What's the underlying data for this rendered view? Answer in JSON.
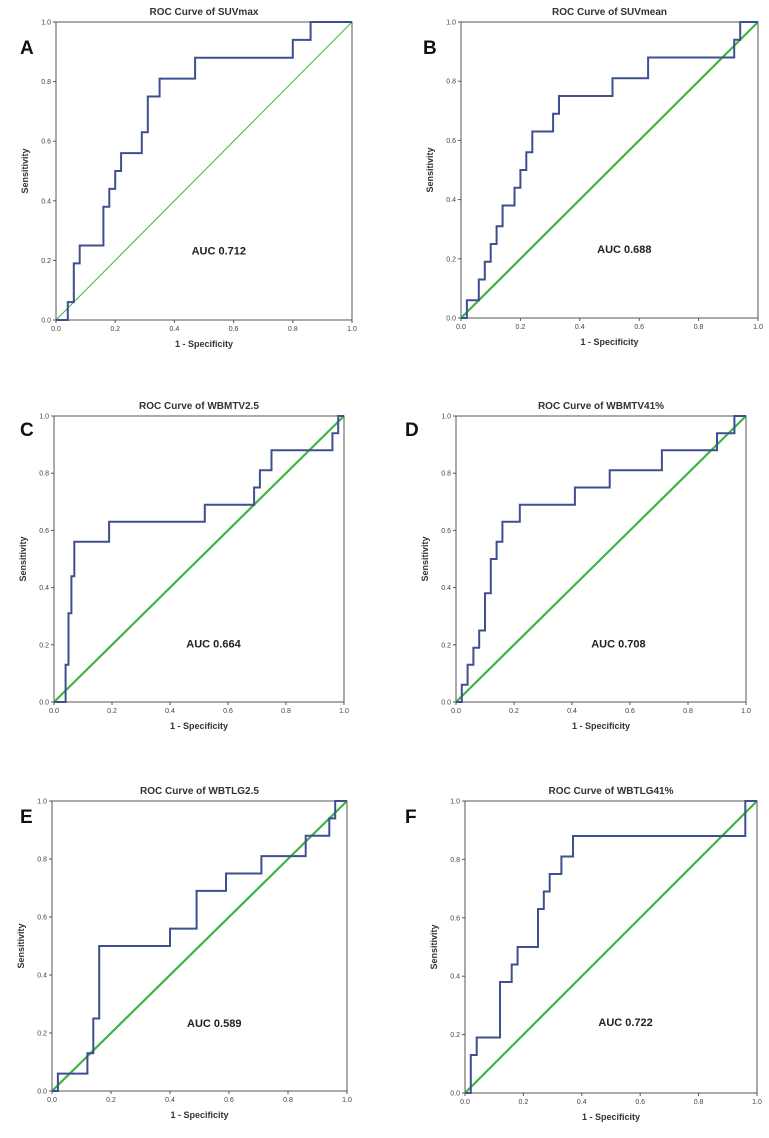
{
  "chart_data": [
    {
      "type": "line",
      "panel": "A",
      "title": "ROC Curve of SUVmax",
      "xlabel": "1 - Specificity",
      "ylabel": "Sensitivity",
      "xlim": [
        0,
        1
      ],
      "ylim": [
        0,
        1
      ],
      "ticks": [
        "0.0",
        "0.2",
        "0.4",
        "0.6",
        "0.8",
        "1.0"
      ],
      "annotation": "AUC 0.712",
      "series": [
        {
          "name": "ROC",
          "color": "#3f4f8f",
          "x": [
            0,
            0.04,
            0.04,
            0.06,
            0.06,
            0.08,
            0.08,
            0.16,
            0.16,
            0.18,
            0.18,
            0.2,
            0.2,
            0.22,
            0.22,
            0.29,
            0.29,
            0.31,
            0.31,
            0.35,
            0.35,
            0.37,
            0.37,
            0.47,
            0.47,
            0.8,
            0.8,
            0.86,
            0.86,
            1
          ],
          "y": [
            0,
            0,
            0.06,
            0.06,
            0.19,
            0.19,
            0.25,
            0.25,
            0.38,
            0.38,
            0.44,
            0.44,
            0.5,
            0.5,
            0.56,
            0.56,
            0.63,
            0.63,
            0.75,
            0.75,
            0.81,
            0.81,
            0.81,
            0.81,
            0.88,
            0.88,
            0.94,
            0.94,
            1,
            1
          ]
        },
        {
          "name": "Reference Line",
          "color": "#3db53d",
          "x": [
            0,
            1
          ],
          "y": [
            0,
            1
          ]
        }
      ]
    },
    {
      "type": "line",
      "panel": "B",
      "title": "ROC Curve of SUVmean",
      "xlabel": "1 - Specificity",
      "ylabel": "Sensitivity",
      "xlim": [
        0,
        1
      ],
      "ylim": [
        0,
        1
      ],
      "ticks": [
        "0.0",
        "0.2",
        "0.4",
        "0.6",
        "0.8",
        "1.0"
      ],
      "annotation": "AUC 0.688",
      "series": [
        {
          "name": "ROC",
          "color": "#3f4f8f",
          "x": [
            0,
            0.02,
            0.02,
            0.04,
            0.04,
            0.06,
            0.06,
            0.08,
            0.08,
            0.1,
            0.1,
            0.12,
            0.12,
            0.14,
            0.14,
            0.18,
            0.18,
            0.2,
            0.2,
            0.22,
            0.22,
            0.24,
            0.24,
            0.31,
            0.31,
            0.33,
            0.33,
            0.51,
            0.51,
            0.63,
            0.63,
            0.92,
            0.92,
            0.94,
            0.94,
            0.96,
            0.96,
            1
          ],
          "y": [
            0,
            0,
            0.06,
            0.06,
            0.06,
            0.06,
            0.13,
            0.13,
            0.19,
            0.19,
            0.25,
            0.25,
            0.31,
            0.31,
            0.38,
            0.38,
            0.44,
            0.44,
            0.5,
            0.5,
            0.56,
            0.56,
            0.63,
            0.63,
            0.69,
            0.69,
            0.75,
            0.75,
            0.81,
            0.81,
            0.88,
            0.88,
            0.94,
            0.94,
            1,
            1,
            1,
            1
          ]
        },
        {
          "name": "Reference Line",
          "color": "#3db53d",
          "x": [
            0,
            1
          ],
          "y": [
            0,
            1
          ]
        }
      ]
    },
    {
      "type": "line",
      "panel": "C",
      "title": "ROC Curve of WBMTV2.5",
      "xlabel": "1 - Specificity",
      "ylabel": "Sensitivity",
      "xlim": [
        0,
        1
      ],
      "ylim": [
        0,
        1
      ],
      "ticks": [
        "0.0",
        "0.2",
        "0.4",
        "0.6",
        "0.8",
        "1.0"
      ],
      "annotation": "AUC 0.664",
      "series": [
        {
          "name": "ROC",
          "color": "#3f4f8f",
          "x": [
            0,
            0.04,
            0.04,
            0.05,
            0.05,
            0.06,
            0.06,
            0.07,
            0.07,
            0.19,
            0.19,
            0.52,
            0.52,
            0.69,
            0.69,
            0.71,
            0.71,
            0.75,
            0.75,
            0.96,
            0.96,
            0.98,
            0.98,
            1
          ],
          "y": [
            0,
            0,
            0.13,
            0.13,
            0.31,
            0.31,
            0.44,
            0.44,
            0.56,
            0.56,
            0.63,
            0.63,
            0.69,
            0.69,
            0.75,
            0.75,
            0.81,
            0.81,
            0.88,
            0.88,
            0.94,
            0.94,
            1,
            1
          ]
        },
        {
          "name": "Reference Line",
          "color": "#3db53d",
          "x": [
            0,
            1
          ],
          "y": [
            0,
            1
          ]
        }
      ]
    },
    {
      "type": "line",
      "panel": "D",
      "title": "ROC Curve of WBMTV41%",
      "xlabel": "1 - Specificity",
      "ylabel": "Sensitivity",
      "xlim": [
        0,
        1
      ],
      "ylim": [
        0,
        1
      ],
      "ticks": [
        "0.0",
        "0.2",
        "0.4",
        "0.6",
        "0.8",
        "1.0"
      ],
      "annotation": "AUC 0.708",
      "series": [
        {
          "name": "ROC",
          "color": "#3f4f8f",
          "x": [
            0,
            0.02,
            0.02,
            0.04,
            0.04,
            0.06,
            0.06,
            0.08,
            0.08,
            0.1,
            0.1,
            0.12,
            0.12,
            0.14,
            0.14,
            0.16,
            0.16,
            0.22,
            0.22,
            0.41,
            0.41,
            0.53,
            0.53,
            0.71,
            0.71,
            0.9,
            0.9,
            0.96,
            0.96,
            1
          ],
          "y": [
            0,
            0,
            0.06,
            0.06,
            0.13,
            0.13,
            0.19,
            0.19,
            0.25,
            0.25,
            0.38,
            0.38,
            0.5,
            0.5,
            0.56,
            0.56,
            0.63,
            0.63,
            0.69,
            0.69,
            0.75,
            0.75,
            0.81,
            0.81,
            0.88,
            0.88,
            0.94,
            0.94,
            1,
            1
          ]
        },
        {
          "name": "Reference Line",
          "color": "#3db53d",
          "x": [
            0,
            1
          ],
          "y": [
            0,
            1
          ]
        }
      ]
    },
    {
      "type": "line",
      "panel": "E",
      "title": "ROC Curve of WBTLG2.5",
      "xlabel": "1 - Specificity",
      "ylabel": "Sensitivity",
      "xlim": [
        0,
        1
      ],
      "ylim": [
        0,
        1
      ],
      "ticks": [
        "0.0",
        "0.2",
        "0.4",
        "0.6",
        "0.8",
        "1.0"
      ],
      "annotation": "AUC 0.589",
      "series": [
        {
          "name": "ROC",
          "color": "#3f4f8f",
          "x": [
            0,
            0.02,
            0.02,
            0.12,
            0.12,
            0.14,
            0.14,
            0.16,
            0.16,
            0.4,
            0.4,
            0.49,
            0.49,
            0.59,
            0.59,
            0.71,
            0.71,
            0.86,
            0.86,
            0.94,
            0.94,
            0.96,
            0.96,
            1
          ],
          "y": [
            0,
            0,
            0.06,
            0.06,
            0.13,
            0.13,
            0.25,
            0.25,
            0.5,
            0.5,
            0.56,
            0.56,
            0.69,
            0.69,
            0.75,
            0.75,
            0.81,
            0.81,
            0.88,
            0.88,
            0.94,
            0.94,
            1,
            1
          ]
        },
        {
          "name": "Reference Line",
          "color": "#3db53d",
          "x": [
            0,
            1
          ],
          "y": [
            0,
            1
          ]
        }
      ]
    },
    {
      "type": "line",
      "panel": "F",
      "title": "ROC Curve of WBTLG41%",
      "xlabel": "1 - Specificity",
      "ylabel": "Sensitivity",
      "xlim": [
        0,
        1
      ],
      "ylim": [
        0,
        1
      ],
      "ticks": [
        "0.0",
        "0.2",
        "0.4",
        "0.6",
        "0.8",
        "1.0"
      ],
      "annotation": "AUC 0.722",
      "series": [
        {
          "name": "ROC",
          "color": "#3f4f8f",
          "x": [
            0,
            0.02,
            0.02,
            0.04,
            0.04,
            0.12,
            0.12,
            0.16,
            0.16,
            0.18,
            0.18,
            0.25,
            0.25,
            0.27,
            0.27,
            0.29,
            0.29,
            0.33,
            0.33,
            0.37,
            0.37,
            0.96,
            0.96,
            1
          ],
          "y": [
            0,
            0,
            0.13,
            0.13,
            0.19,
            0.19,
            0.38,
            0.38,
            0.44,
            0.44,
            0.5,
            0.5,
            0.63,
            0.63,
            0.69,
            0.69,
            0.75,
            0.75,
            0.81,
            0.81,
            0.88,
            0.88,
            1,
            1
          ]
        },
        {
          "name": "Reference Line",
          "color": "#3db53d",
          "x": [
            0,
            1
          ],
          "y": [
            0,
            1
          ]
        }
      ]
    }
  ]
}
